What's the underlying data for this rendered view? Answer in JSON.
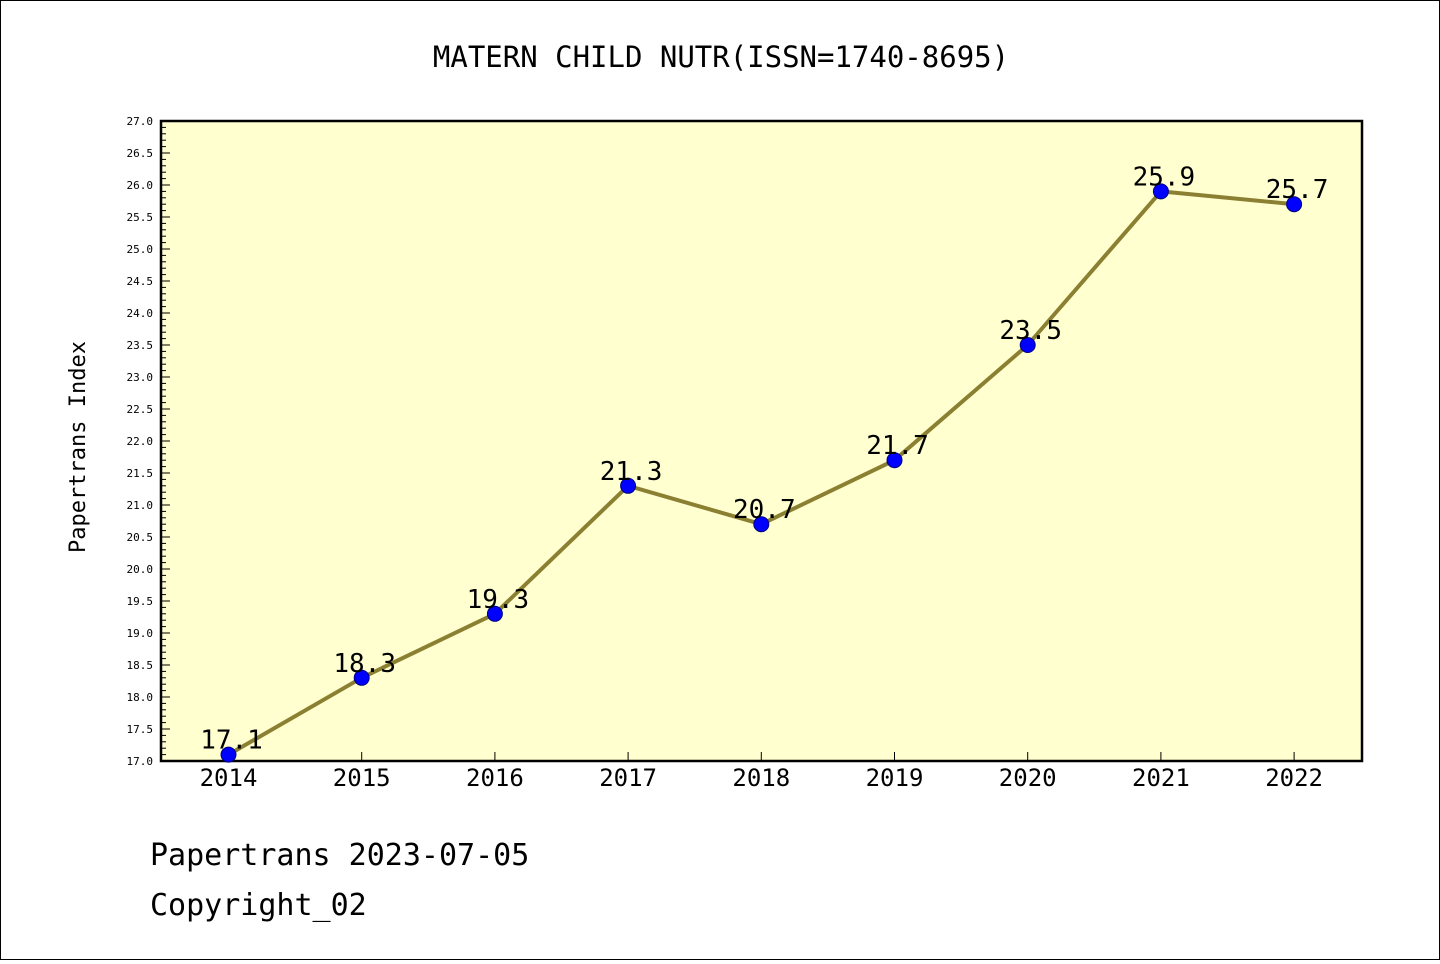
{
  "chart_data": {
    "type": "line",
    "title": "MATERN CHILD NUTR(ISSN=1740-8695)",
    "xlabel": "",
    "ylabel": "Papertrans Index",
    "categories": [
      "2014",
      "2015",
      "2016",
      "2017",
      "2018",
      "2019",
      "2020",
      "2021",
      "2022"
    ],
    "values": [
      17.1,
      18.3,
      19.3,
      21.3,
      20.7,
      21.7,
      23.5,
      25.9,
      25.7
    ],
    "data_labels": [
      "17.1",
      "18.3",
      "19.3",
      "21.3",
      "20.7",
      "21.7",
      "23.5",
      "25.9",
      "25.7"
    ],
    "ylim": [
      17.0,
      27.0
    ],
    "ytick_labels": [
      "17.0",
      "17.5",
      "18.0",
      "18.5",
      "19.0",
      "19.5",
      "20.0",
      "20.5",
      "21.0",
      "21.5",
      "22.0",
      "22.5",
      "23.0",
      "23.5",
      "24.0",
      "24.5",
      "25.0",
      "25.5",
      "26.0",
      "26.5",
      "27.0"
    ],
    "grid": false,
    "legend": "none",
    "colors": {
      "plot_background": "#ffffd0",
      "line": "#8b8032",
      "marker": "#0000ff",
      "marker_edge": "#000080"
    }
  },
  "footer": {
    "line1": "Papertrans 2023-07-05",
    "line2": "Copyright_02"
  }
}
